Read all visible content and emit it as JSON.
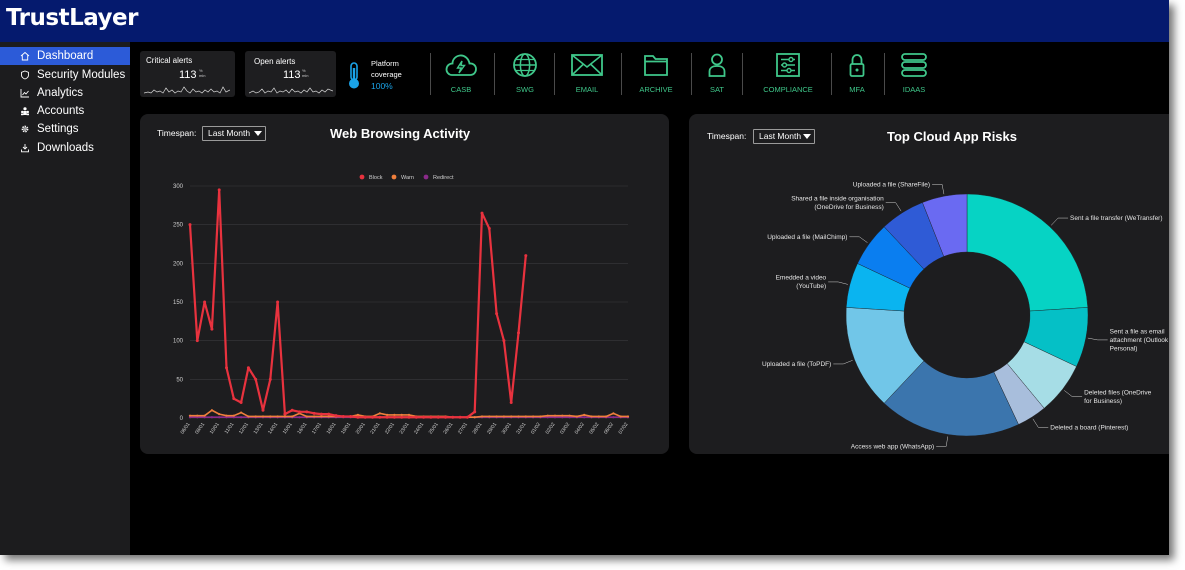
{
  "app": {
    "name": "TrustLayer"
  },
  "sidebar": {
    "items": [
      {
        "label": "Dashboard",
        "icon": "home-icon",
        "active": true
      },
      {
        "label": "Security Modules",
        "icon": "shield-icon",
        "active": false
      },
      {
        "label": "Analytics",
        "icon": "analytics-icon",
        "active": false
      },
      {
        "label": "Accounts",
        "icon": "accounts-icon",
        "active": false
      },
      {
        "label": "Settings",
        "icon": "gear-icon",
        "active": false
      },
      {
        "label": "Downloads",
        "icon": "download-icon",
        "active": false
      }
    ]
  },
  "stats": {
    "critical_alerts": {
      "label": "Critical alerts",
      "value": "113",
      "unit_top": "%",
      "unit_bottom": "min"
    },
    "open_alerts": {
      "label": "Open alerts",
      "value": "113",
      "unit_top": "%",
      "unit_bottom": "min"
    },
    "platform_coverage": {
      "label_line1": "Platform",
      "label_line2": "coverage",
      "value": "100%",
      "icon": "thermometer-icon"
    }
  },
  "modules": [
    {
      "label": "CASB",
      "icon": "cloud-bolt-icon"
    },
    {
      "label": "SWG",
      "icon": "globe-icon"
    },
    {
      "label": "EMAIL",
      "icon": "envelope-icon"
    },
    {
      "label": "ARCHIVE",
      "icon": "folder-icon"
    },
    {
      "label": "SAT",
      "icon": "user-icon"
    },
    {
      "label": "COMPLIANCE",
      "icon": "sliders-icon"
    },
    {
      "label": "MFA",
      "icon": "lock-icon"
    },
    {
      "label": "IDAAS",
      "icon": "server-icon"
    }
  ],
  "colors": {
    "accent": "#3fc78a",
    "nav_active": "#2c5bd8",
    "topbar": "#051a6e",
    "coverage": "#1aa3e8"
  },
  "web_browsing": {
    "timespan_label": "Timespan:",
    "timespan_value": "Last Month",
    "title": "Web Browsing Activity"
  },
  "cloud_risks": {
    "timespan_label": "Timespan:",
    "timespan_value": "Last Month",
    "title": "Top Cloud App Risks"
  },
  "chart_data": [
    {
      "type": "line",
      "title": "Web Browsing Activity",
      "xlabel": "",
      "ylabel": "",
      "ylim": [
        0,
        300
      ],
      "yticks": [
        0,
        50,
        100,
        150,
        200,
        250,
        300
      ],
      "grid": true,
      "legend_position": "top-center",
      "x_tick_labels": [
        "06/01",
        "08/01",
        "10/01",
        "11/01",
        "12/01",
        "13/01",
        "14/01",
        "15/01",
        "16/01",
        "17/01",
        "18/01",
        "19/01",
        "20/01",
        "21/01",
        "22/01",
        "23/01",
        "24/01",
        "25/01",
        "26/01",
        "27/01",
        "28/01",
        "29/01",
        "30/01",
        "31/01",
        "01/02",
        "02/02",
        "03/02",
        "04/02",
        "05/02",
        "06/02",
        "07/02"
      ],
      "x": [
        0,
        1,
        2,
        3,
        4,
        5,
        6,
        7,
        8,
        9,
        10,
        11,
        12,
        13,
        14,
        15,
        16,
        17,
        18,
        19,
        20,
        21,
        22,
        23,
        24,
        25,
        26,
        27,
        28,
        29,
        30,
        31,
        32,
        33,
        34,
        35,
        36,
        37,
        38,
        39,
        40,
        41,
        42,
        43,
        44,
        45,
        46,
        47,
        48,
        49,
        50,
        51,
        52,
        53,
        54,
        55,
        56,
        57,
        58,
        59,
        60
      ],
      "series": [
        {
          "name": "Block",
          "color": "#e8323e",
          "values": [
            250,
            100,
            150,
            115,
            295,
            65,
            25,
            20,
            65,
            50,
            10,
            50,
            150,
            5,
            10,
            8,
            8,
            6,
            5,
            5,
            3,
            2,
            2,
            1,
            1,
            1,
            1,
            1,
            1,
            1,
            1,
            1,
            1,
            1,
            1,
            1,
            1,
            1,
            1,
            8,
            265,
            245,
            135,
            100,
            20,
            110,
            210,
            null,
            null,
            null,
            null,
            null,
            null,
            null,
            null,
            null,
            null,
            null,
            null,
            null,
            null
          ]
        },
        {
          "name": "Warn",
          "color": "#f07f3c",
          "values": [
            3,
            3,
            3,
            10,
            5,
            3,
            3,
            7,
            2,
            2,
            2,
            2,
            2,
            2,
            2,
            6,
            2,
            2,
            2,
            2,
            2,
            2,
            2,
            4,
            2,
            2,
            6,
            4,
            4,
            4,
            4,
            2,
            2,
            2,
            2,
            2,
            1,
            1,
            1,
            1,
            2,
            2,
            2,
            2,
            2,
            2,
            2,
            2,
            2,
            3,
            3,
            3,
            3,
            2,
            4,
            2,
            2,
            2,
            6,
            2,
            2
          ]
        },
        {
          "name": "Redirect",
          "color": "#8a2a8a",
          "values": [
            1,
            1,
            1,
            1,
            1,
            1,
            1,
            1,
            1,
            1,
            1,
            1,
            1,
            1,
            1,
            1,
            1,
            1,
            1,
            1,
            1,
            1,
            1,
            1,
            1,
            1,
            1,
            1,
            1,
            1,
            1,
            1,
            1,
            1,
            1,
            1,
            1,
            1,
            1,
            1,
            1,
            1,
            1,
            1,
            1,
            1,
            1,
            1,
            1,
            1,
            1,
            1,
            1,
            1,
            1,
            1,
            1,
            1,
            1,
            1,
            1
          ]
        }
      ]
    },
    {
      "type": "pie",
      "title": "Top Cloud App Risks",
      "donut": true,
      "slices": [
        {
          "label_lines": [
            "Sent a file transfer (WeTransfer)"
          ],
          "value": 24,
          "color": "#06d3c4"
        },
        {
          "label_lines": [
            "Sent a file as email",
            "attachment (Outlook",
            "Personal)"
          ],
          "value": 8,
          "color": "#05c0c6"
        },
        {
          "label_lines": [
            "Deleted files (OneDrive",
            "for Business)"
          ],
          "value": 7,
          "color": "#a6dde6"
        },
        {
          "label_lines": [
            "Deleted a board (Pinterest)"
          ],
          "value": 4,
          "color": "#a8bedc"
        },
        {
          "label_lines": [
            "Access web app (WhatsApp)"
          ],
          "value": 19,
          "color": "#3b75ad"
        },
        {
          "label_lines": [
            "Uploaded a file (ToPDF)"
          ],
          "value": 14,
          "color": "#71c6e8"
        },
        {
          "label_lines": [
            "Emedded a video",
            "(YouTube)"
          ],
          "value": 6,
          "color": "#0ab4f0"
        },
        {
          "label_lines": [
            "Uploaded a file (MailChimp)"
          ],
          "value": 6,
          "color": "#0a7ef0"
        },
        {
          "label_lines": [
            "Shared a file inside organisation",
            "(OneDrive for Business)"
          ],
          "value": 6,
          "color": "#2f5bd6"
        },
        {
          "label_lines": [
            "Uploaded a file (ShareFile)"
          ],
          "value": 6,
          "color": "#6a6af2"
        }
      ]
    }
  ]
}
